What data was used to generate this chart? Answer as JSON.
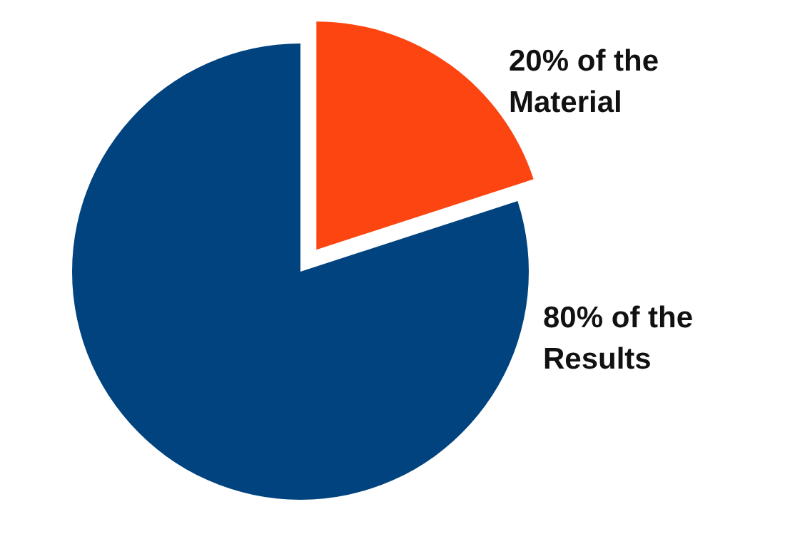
{
  "chart_data": {
    "type": "pie",
    "categories": [
      "20% of the Material",
      "80% of the Results"
    ],
    "values": [
      20,
      80
    ],
    "colors": [
      "#fc4510",
      "#00437f"
    ]
  }
}
